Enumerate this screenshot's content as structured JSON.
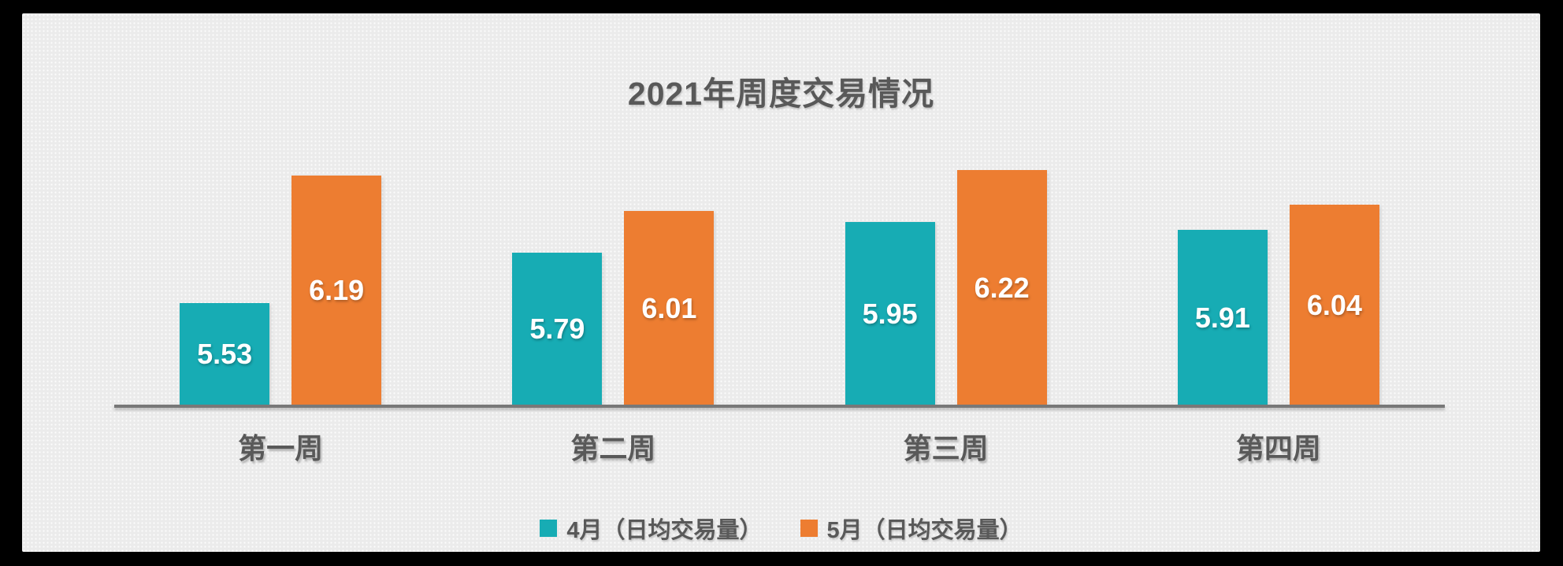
{
  "chart_data": {
    "type": "bar",
    "title": "2021年周度交易情况",
    "categories": [
      "第一周",
      "第二周",
      "第三周",
      "第四周"
    ],
    "series": [
      {
        "key": "april",
        "name": "4月（日均交易量）",
        "color": "#17ACB4",
        "values": [
          5.53,
          5.79,
          5.95,
          5.91
        ]
      },
      {
        "key": "may",
        "name": "5月（日均交易量）",
        "color": "#ED7D31",
        "values": [
          6.19,
          6.01,
          6.22,
          6.04
        ]
      }
    ],
    "axis": {
      "y_min": 5.0,
      "y_max": 6.4,
      "y_axis_visible": false,
      "gridlines": false,
      "baseline_visible": true
    },
    "value_labels": "inside-center",
    "value_label_format": "2-decimals",
    "legend_position": "bottom",
    "colors": {
      "title_text": "#595959",
      "axis_label_text": "#595959",
      "legend_text": "#595959",
      "value_label_text": "#FFFFFF",
      "baseline": "#787878",
      "panel_background": "#EBEBEB",
      "frame_background": "#000000"
    }
  }
}
